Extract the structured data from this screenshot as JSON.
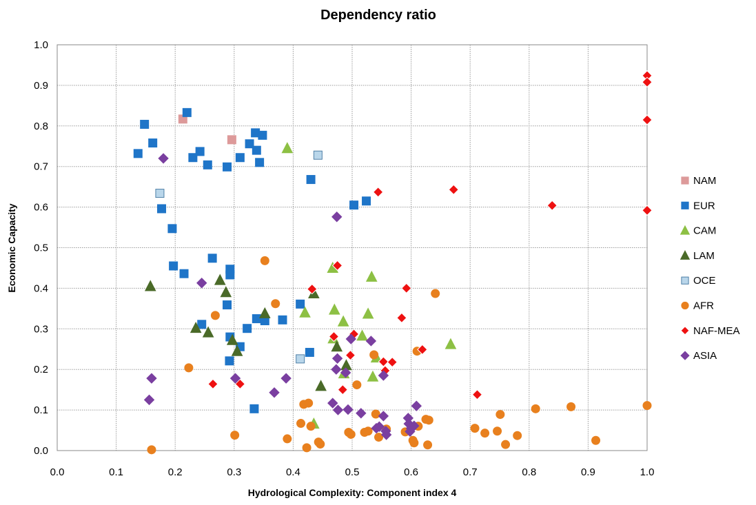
{
  "chart_data": {
    "type": "scatter",
    "title": "Dependency ratio",
    "xlabel": "Hydrological Complexity: Component index 4",
    "ylabel": "Economic Capacity",
    "xlim": [
      0,
      1
    ],
    "ylim": [
      0,
      1
    ],
    "x_ticks": [
      "0.0",
      "0.1",
      "0.2",
      "0.3",
      "0.4",
      "0.5",
      "0.6",
      "0.7",
      "0.8",
      "0.9",
      "1.0"
    ],
    "y_ticks": [
      "0.0",
      "0.1",
      "0.2",
      "0.3",
      "0.4",
      "0.5",
      "0.6",
      "0.7",
      "0.8",
      "0.9",
      "1.0"
    ],
    "grid": true,
    "legend_position": "right",
    "series": [
      {
        "name": "NAM",
        "marker": "square",
        "color": "#dd9a9a",
        "stroke": "#dd9a9a",
        "points": [
          [
            0.213,
            0.817
          ],
          [
            0.296,
            0.766
          ]
        ]
      },
      {
        "name": "EUR",
        "marker": "square",
        "color": "#1f75c8",
        "stroke": "#1f75c8",
        "points": [
          [
            0.22,
            0.833
          ],
          [
            0.148,
            0.804
          ],
          [
            0.137,
            0.732
          ],
          [
            0.162,
            0.758
          ],
          [
            0.23,
            0.722
          ],
          [
            0.242,
            0.737
          ],
          [
            0.255,
            0.704
          ],
          [
            0.288,
            0.699
          ],
          [
            0.31,
            0.722
          ],
          [
            0.326,
            0.756
          ],
          [
            0.336,
            0.783
          ],
          [
            0.348,
            0.777
          ],
          [
            0.338,
            0.74
          ],
          [
            0.343,
            0.71
          ],
          [
            0.43,
            0.668
          ],
          [
            0.503,
            0.605
          ],
          [
            0.524,
            0.615
          ],
          [
            0.177,
            0.596
          ],
          [
            0.195,
            0.547
          ],
          [
            0.197,
            0.455
          ],
          [
            0.215,
            0.436
          ],
          [
            0.263,
            0.474
          ],
          [
            0.293,
            0.447
          ],
          [
            0.293,
            0.433
          ],
          [
            0.288,
            0.359
          ],
          [
            0.245,
            0.311
          ],
          [
            0.293,
            0.28
          ],
          [
            0.31,
            0.256
          ],
          [
            0.292,
            0.221
          ],
          [
            0.322,
            0.301
          ],
          [
            0.338,
            0.325
          ],
          [
            0.352,
            0.32
          ],
          [
            0.382,
            0.322
          ],
          [
            0.412,
            0.361
          ],
          [
            0.428,
            0.242
          ],
          [
            0.334,
            0.103
          ]
        ]
      },
      {
        "name": "CAM",
        "marker": "triangle",
        "color": "#8dc044",
        "stroke": "#8dc044",
        "points": [
          [
            0.39,
            0.745
          ],
          [
            0.467,
            0.45
          ],
          [
            0.533,
            0.428
          ],
          [
            0.42,
            0.34
          ],
          [
            0.47,
            0.347
          ],
          [
            0.485,
            0.318
          ],
          [
            0.527,
            0.337
          ],
          [
            0.517,
            0.283
          ],
          [
            0.468,
            0.276
          ],
          [
            0.541,
            0.229
          ],
          [
            0.486,
            0.19
          ],
          [
            0.535,
            0.182
          ],
          [
            0.667,
            0.262
          ],
          [
            0.435,
            0.066
          ]
        ]
      },
      {
        "name": "LAM",
        "marker": "triangle",
        "color": "#4a6a28",
        "stroke": "#4a6a28",
        "points": [
          [
            0.158,
            0.405
          ],
          [
            0.276,
            0.42
          ],
          [
            0.286,
            0.39
          ],
          [
            0.235,
            0.302
          ],
          [
            0.256,
            0.291
          ],
          [
            0.297,
            0.272
          ],
          [
            0.305,
            0.245
          ],
          [
            0.352,
            0.338
          ],
          [
            0.435,
            0.387
          ],
          [
            0.474,
            0.256
          ],
          [
            0.49,
            0.21
          ],
          [
            0.447,
            0.159
          ]
        ]
      },
      {
        "name": "OCE",
        "marker": "square",
        "color": "#b9d6ea",
        "stroke": "#4e7fa6",
        "points": [
          [
            0.174,
            0.634
          ],
          [
            0.442,
            0.728
          ],
          [
            0.412,
            0.226
          ]
        ]
      },
      {
        "name": "AFR",
        "marker": "circle",
        "color": "#e8801e",
        "stroke": "#e8801e",
        "points": [
          [
            0.352,
            0.468
          ],
          [
            0.37,
            0.362
          ],
          [
            0.268,
            0.333
          ],
          [
            0.223,
            0.204
          ],
          [
            0.641,
            0.387
          ],
          [
            0.61,
            0.245
          ],
          [
            0.537,
            0.236
          ],
          [
            0.508,
            0.162
          ],
          [
            0.301,
            0.038
          ],
          [
            0.16,
            0.002
          ],
          [
            0.418,
            0.114
          ],
          [
            0.426,
            0.117
          ],
          [
            0.39,
            0.029
          ],
          [
            0.413,
            0.067
          ],
          [
            0.43,
            0.06
          ],
          [
            0.443,
            0.021
          ],
          [
            0.446,
            0.016
          ],
          [
            0.423,
            0.007
          ],
          [
            0.494,
            0.045
          ],
          [
            0.498,
            0.04
          ],
          [
            0.521,
            0.045
          ],
          [
            0.527,
            0.048
          ],
          [
            0.54,
            0.09
          ],
          [
            0.545,
            0.033
          ],
          [
            0.558,
            0.053
          ],
          [
            0.59,
            0.046
          ],
          [
            0.603,
            0.025
          ],
          [
            0.605,
            0.019
          ],
          [
            0.612,
            0.06
          ],
          [
            0.625,
            0.077
          ],
          [
            0.63,
            0.075
          ],
          [
            0.628,
            0.014
          ],
          [
            0.708,
            0.055
          ],
          [
            0.725,
            0.043
          ],
          [
            0.746,
            0.048
          ],
          [
            0.751,
            0.089
          ],
          [
            0.76,
            0.015
          ],
          [
            0.78,
            0.037
          ],
          [
            0.811,
            0.103
          ],
          [
            0.871,
            0.108
          ],
          [
            0.913,
            0.025
          ],
          [
            1.0,
            0.111
          ]
        ]
      },
      {
        "name": "NAF-MEA",
        "marker": "diamond",
        "color": "#ee1111",
        "stroke": "#ffffff",
        "points": [
          [
            1.0,
            0.924
          ],
          [
            1.0,
            0.908
          ],
          [
            1.0,
            0.815
          ],
          [
            0.672,
            0.643
          ],
          [
            0.544,
            0.637
          ],
          [
            0.839,
            0.604
          ],
          [
            1.0,
            0.592
          ],
          [
            0.475,
            0.456
          ],
          [
            0.432,
            0.398
          ],
          [
            0.592,
            0.4
          ],
          [
            0.584,
            0.327
          ],
          [
            0.469,
            0.281
          ],
          [
            0.503,
            0.287
          ],
          [
            0.497,
            0.235
          ],
          [
            0.553,
            0.219
          ],
          [
            0.568,
            0.218
          ],
          [
            0.619,
            0.249
          ],
          [
            0.556,
            0.197
          ],
          [
            0.484,
            0.15
          ],
          [
            0.712,
            0.138
          ],
          [
            0.264,
            0.164
          ],
          [
            0.31,
            0.164
          ]
        ]
      },
      {
        "name": "ASIA",
        "marker": "diamond",
        "color": "#7a3fa0",
        "stroke": "#7a3fa0",
        "points": [
          [
            0.18,
            0.72
          ],
          [
            0.474,
            0.576
          ],
          [
            0.245,
            0.413
          ],
          [
            0.498,
            0.275
          ],
          [
            0.532,
            0.27
          ],
          [
            0.475,
            0.227
          ],
          [
            0.473,
            0.2
          ],
          [
            0.489,
            0.192
          ],
          [
            0.553,
            0.185
          ],
          [
            0.16,
            0.178
          ],
          [
            0.156,
            0.125
          ],
          [
            0.302,
            0.178
          ],
          [
            0.388,
            0.178
          ],
          [
            0.368,
            0.143
          ],
          [
            0.467,
            0.117
          ],
          [
            0.476,
            0.1
          ],
          [
            0.493,
            0.101
          ],
          [
            0.515,
            0.092
          ],
          [
            0.553,
            0.085
          ],
          [
            0.541,
            0.055
          ],
          [
            0.546,
            0.059
          ],
          [
            0.557,
            0.048
          ],
          [
            0.558,
            0.039
          ],
          [
            0.595,
            0.08
          ],
          [
            0.596,
            0.066
          ],
          [
            0.6,
            0.055
          ],
          [
            0.605,
            0.061
          ],
          [
            0.609,
            0.11
          ],
          [
            0.598,
            0.047
          ]
        ]
      }
    ]
  }
}
